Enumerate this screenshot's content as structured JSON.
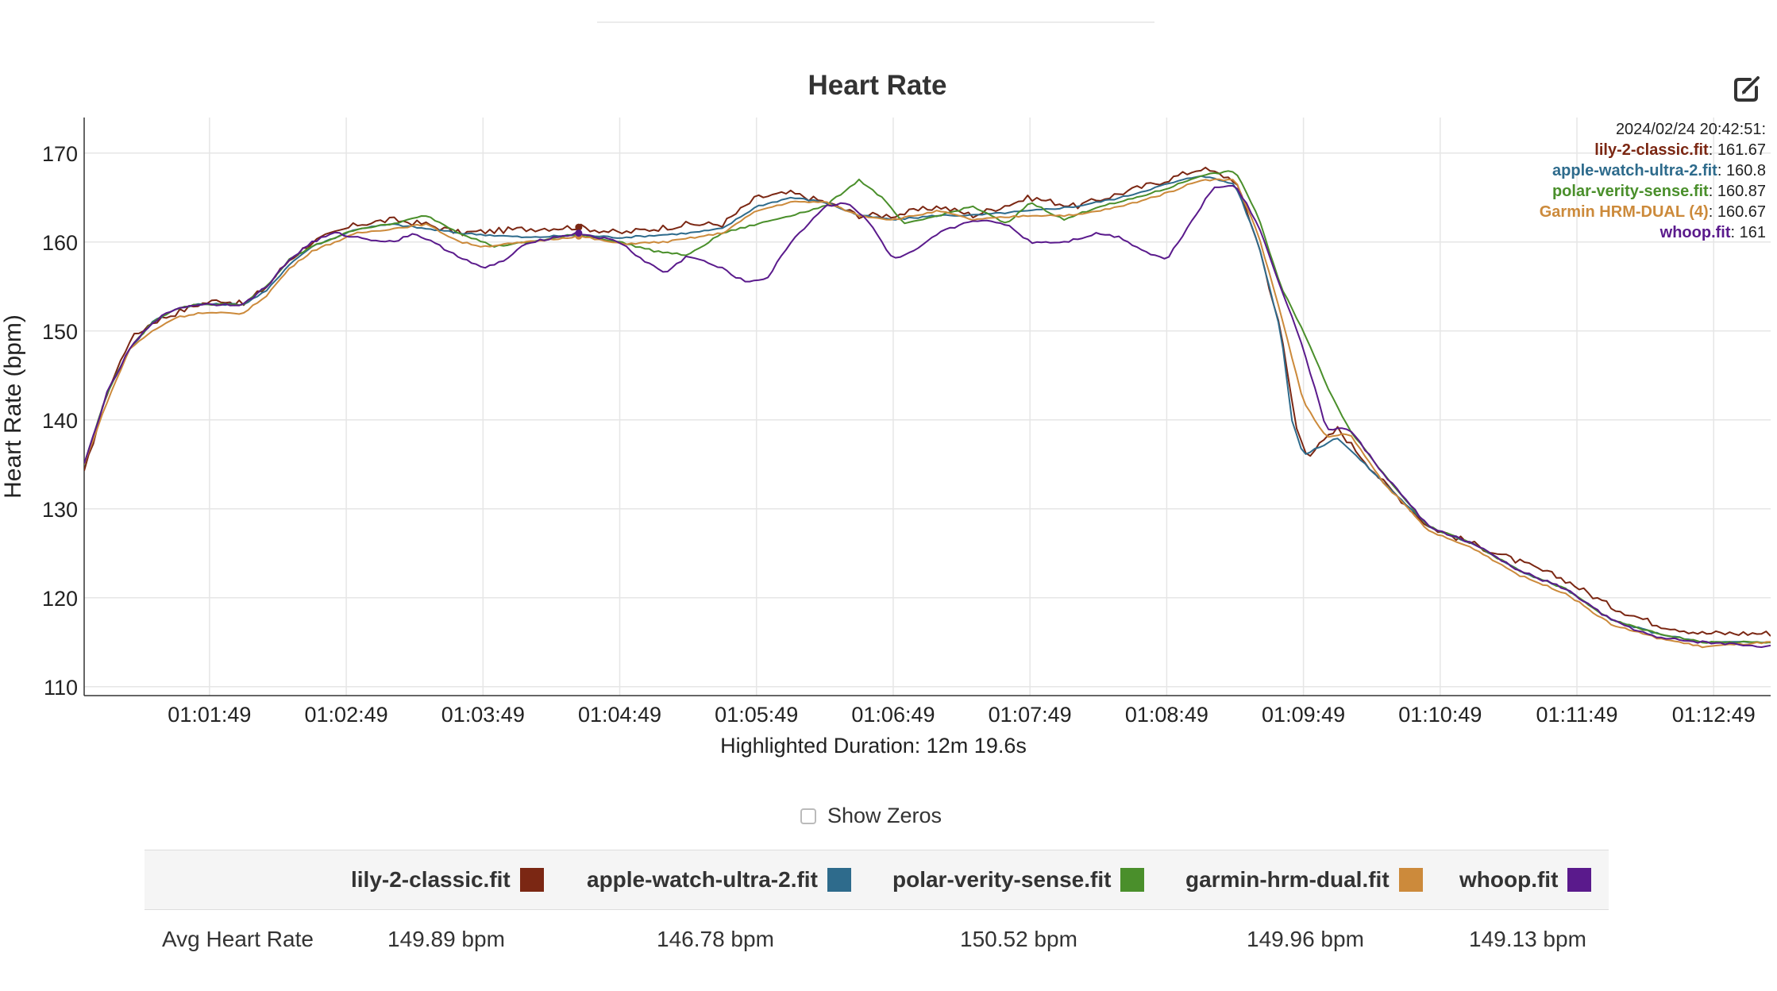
{
  "chart_title": "Heart Rate",
  "export_icon": "edit-export-icon",
  "chart_data": {
    "type": "line",
    "title": "Heart Rate",
    "ylabel": "Heart Rate (bpm)",
    "xlabel": "Highlighted Duration: 12m 19.6s",
    "x_unit": "elapsed time (h:mm:ss)",
    "xlim": [
      "01:00:54",
      "01:13:14"
    ],
    "ylim": [
      109,
      174
    ],
    "y_ticks": [
      110,
      120,
      130,
      140,
      150,
      160,
      170
    ],
    "x_ticks": [
      "01:01:49",
      "01:02:49",
      "01:03:49",
      "01:04:49",
      "01:05:49",
      "01:06:49",
      "01:07:49",
      "01:08:49",
      "01:09:49",
      "01:10:49",
      "01:11:49",
      "01:12:49"
    ],
    "grid": true,
    "legend_position": "below chart (table)",
    "tooltip": {
      "header": "2024/02/24 20:42:51:",
      "time": "01:04:31",
      "entries": [
        {
          "name": "lily-2-classic.fit",
          "value": "161.67",
          "color": "#7b2713"
        },
        {
          "name": "apple-watch-ultra-2.fit",
          "value": "160.8",
          "color": "#2e6b8c"
        },
        {
          "name": "polar-verity-sense.fit",
          "value": "160.87",
          "color": "#4a8f2b"
        },
        {
          "name": "Garmin HRM-DUAL (4)",
          "value": "160.67",
          "color": "#cc8a3b"
        },
        {
          "name": "whoop.fit",
          "value": "161",
          "color": "#5a1a8c"
        }
      ]
    },
    "series": [
      {
        "name": "lily-2-classic.fit",
        "color": "#7b2713",
        "wiggle": 0.7,
        "points": [
          [
            "01:00:54",
            134
          ],
          [
            "01:01:04",
            143
          ],
          [
            "01:01:14",
            149
          ],
          [
            "01:01:24",
            151
          ],
          [
            "01:01:34",
            152
          ],
          [
            "01:01:44",
            153
          ],
          [
            "01:01:54",
            153.5
          ],
          [
            "01:02:04",
            153
          ],
          [
            "01:02:14",
            155
          ],
          [
            "01:02:24",
            158
          ],
          [
            "01:02:34",
            160
          ],
          [
            "01:02:44",
            161
          ],
          [
            "01:02:54",
            162
          ],
          [
            "01:03:09",
            162.5
          ],
          [
            "01:03:24",
            162
          ],
          [
            "01:03:39",
            161
          ],
          [
            "01:04:09",
            161.5
          ],
          [
            "01:04:31",
            161.7
          ],
          [
            "01:04:49",
            161
          ],
          [
            "01:05:19",
            162
          ],
          [
            "01:05:34",
            162
          ],
          [
            "01:05:49",
            165
          ],
          [
            "01:06:04",
            165.5
          ],
          [
            "01:06:19",
            164.5
          ],
          [
            "01:06:34",
            163
          ],
          [
            "01:06:49",
            163
          ],
          [
            "01:07:09",
            164
          ],
          [
            "01:07:24",
            163
          ],
          [
            "01:07:49",
            165
          ],
          [
            "01:08:09",
            164
          ],
          [
            "01:08:29",
            165.5
          ],
          [
            "01:08:49",
            167
          ],
          [
            "01:09:04",
            168.3
          ],
          [
            "01:09:19",
            167
          ],
          [
            "01:09:29",
            160
          ],
          [
            "01:09:39",
            150
          ],
          [
            "01:09:46",
            139
          ],
          [
            "01:09:51",
            136
          ],
          [
            "01:10:04",
            139
          ],
          [
            "01:10:24",
            133
          ],
          [
            "01:10:44",
            128
          ],
          [
            "01:11:04",
            126
          ],
          [
            "01:11:24",
            124
          ],
          [
            "01:11:44",
            122
          ],
          [
            "01:12:04",
            119
          ],
          [
            "01:12:24",
            117
          ],
          [
            "01:12:44",
            116
          ],
          [
            "01:13:14",
            116
          ]
        ]
      },
      {
        "name": "apple-watch-ultra-2.fit",
        "color": "#2e6b8c",
        "wiggle": 0.2,
        "points": [
          [
            "01:00:54",
            135
          ],
          [
            "01:01:04",
            143
          ],
          [
            "01:01:14",
            148
          ],
          [
            "01:01:24",
            151
          ],
          [
            "01:01:34",
            152.5
          ],
          [
            "01:01:44",
            153
          ],
          [
            "01:01:54",
            153
          ],
          [
            "01:02:04",
            153
          ],
          [
            "01:02:14",
            154.5
          ],
          [
            "01:02:24",
            157.5
          ],
          [
            "01:02:34",
            159.5
          ],
          [
            "01:02:44",
            160.5
          ],
          [
            "01:02:54",
            161.5
          ],
          [
            "01:03:09",
            162
          ],
          [
            "01:03:24",
            161.5
          ],
          [
            "01:03:39",
            161
          ],
          [
            "01:04:09",
            160.5
          ],
          [
            "01:04:31",
            160.8
          ],
          [
            "01:04:49",
            160.5
          ],
          [
            "01:05:19",
            161
          ],
          [
            "01:05:34",
            161.5
          ],
          [
            "01:05:49",
            164
          ],
          [
            "01:06:04",
            165
          ],
          [
            "01:06:19",
            164.5
          ],
          [
            "01:06:34",
            163
          ],
          [
            "01:06:49",
            162.5
          ],
          [
            "01:07:09",
            163
          ],
          [
            "01:07:24",
            163
          ],
          [
            "01:07:49",
            163.5
          ],
          [
            "01:08:09",
            164
          ],
          [
            "01:08:29",
            165
          ],
          [
            "01:08:49",
            166.5
          ],
          [
            "01:09:04",
            167.5
          ],
          [
            "01:09:19",
            166.5
          ],
          [
            "01:09:29",
            160
          ],
          [
            "01:09:39",
            150
          ],
          [
            "01:09:44",
            140
          ],
          [
            "01:09:49",
            136
          ],
          [
            "01:10:04",
            138
          ],
          [
            "01:10:24",
            133
          ],
          [
            "01:10:44",
            128
          ],
          [
            "01:11:04",
            126
          ],
          [
            "01:11:24",
            123
          ],
          [
            "01:11:44",
            121
          ],
          [
            "01:12:04",
            117.5
          ],
          [
            "01:12:24",
            116
          ],
          [
            "01:12:44",
            115
          ],
          [
            "01:13:14",
            115
          ]
        ]
      },
      {
        "name": "polar-verity-sense.fit",
        "color": "#4a8f2b",
        "wiggle": 0.2,
        "points": [
          [
            "01:00:54",
            135
          ],
          [
            "01:01:04",
            143
          ],
          [
            "01:01:14",
            148
          ],
          [
            "01:01:24",
            151
          ],
          [
            "01:01:34",
            152.5
          ],
          [
            "01:01:44",
            153
          ],
          [
            "01:01:54",
            153
          ],
          [
            "01:02:04",
            153
          ],
          [
            "01:02:14",
            155
          ],
          [
            "01:02:24",
            158
          ],
          [
            "01:02:34",
            159.5
          ],
          [
            "01:02:44",
            160.5
          ],
          [
            "01:02:54",
            161.5
          ],
          [
            "01:03:09",
            162
          ],
          [
            "01:03:24",
            163
          ],
          [
            "01:03:39",
            161
          ],
          [
            "01:03:54",
            159.5
          ],
          [
            "01:04:09",
            160
          ],
          [
            "01:04:31",
            160.87
          ],
          [
            "01:04:49",
            160
          ],
          [
            "01:05:04",
            159
          ],
          [
            "01:05:19",
            158.5
          ],
          [
            "01:05:34",
            161
          ],
          [
            "01:05:49",
            162
          ],
          [
            "01:06:04",
            163
          ],
          [
            "01:06:19",
            164
          ],
          [
            "01:06:34",
            167
          ],
          [
            "01:06:44",
            165
          ],
          [
            "01:06:54",
            162
          ],
          [
            "01:07:09",
            163
          ],
          [
            "01:07:24",
            164
          ],
          [
            "01:07:39",
            162
          ],
          [
            "01:07:49",
            164.5
          ],
          [
            "01:08:04",
            162.5
          ],
          [
            "01:08:19",
            164
          ],
          [
            "01:08:29",
            164.5
          ],
          [
            "01:08:49",
            166
          ],
          [
            "01:09:04",
            167.5
          ],
          [
            "01:09:19",
            168
          ],
          [
            "01:09:29",
            163
          ],
          [
            "01:09:39",
            155
          ],
          [
            "01:09:49",
            150
          ],
          [
            "01:09:59",
            144
          ],
          [
            "01:10:09",
            139
          ],
          [
            "01:10:24",
            134
          ],
          [
            "01:10:44",
            128
          ],
          [
            "01:11:04",
            126
          ],
          [
            "01:11:24",
            123
          ],
          [
            "01:11:44",
            121
          ],
          [
            "01:12:04",
            117.5
          ],
          [
            "01:12:24",
            116
          ],
          [
            "01:12:44",
            115
          ],
          [
            "01:13:14",
            115
          ]
        ]
      },
      {
        "name": "Garmin HRM-DUAL (4)",
        "color": "#cc8a3b",
        "wiggle": 0.2,
        "points": [
          [
            "01:00:54",
            135
          ],
          [
            "01:01:04",
            142
          ],
          [
            "01:01:14",
            148
          ],
          [
            "01:01:24",
            150
          ],
          [
            "01:01:34",
            151.5
          ],
          [
            "01:01:44",
            152
          ],
          [
            "01:01:54",
            152
          ],
          [
            "01:02:04",
            152
          ],
          [
            "01:02:14",
            154
          ],
          [
            "01:02:24",
            157
          ],
          [
            "01:02:34",
            159
          ],
          [
            "01:02:44",
            160
          ],
          [
            "01:02:54",
            161
          ],
          [
            "01:03:09",
            161.5
          ],
          [
            "01:03:24",
            162
          ],
          [
            "01:03:39",
            160
          ],
          [
            "01:03:49",
            159.5
          ],
          [
            "01:04:09",
            160
          ],
          [
            "01:04:31",
            160.67
          ],
          [
            "01:04:49",
            159.8
          ],
          [
            "01:05:09",
            160
          ],
          [
            "01:05:34",
            161
          ],
          [
            "01:05:49",
            163.5
          ],
          [
            "01:06:04",
            164.5
          ],
          [
            "01:06:19",
            164.5
          ],
          [
            "01:06:34",
            163
          ],
          [
            "01:06:49",
            162.5
          ],
          [
            "01:07:09",
            163.5
          ],
          [
            "01:07:24",
            162.5
          ],
          [
            "01:07:49",
            163
          ],
          [
            "01:08:09",
            163
          ],
          [
            "01:08:29",
            164
          ],
          [
            "01:08:49",
            165.5
          ],
          [
            "01:09:04",
            167
          ],
          [
            "01:09:19",
            167
          ],
          [
            "01:09:29",
            161
          ],
          [
            "01:09:39",
            152
          ],
          [
            "01:09:49",
            142
          ],
          [
            "01:09:59",
            138
          ],
          [
            "01:10:09",
            138.5
          ],
          [
            "01:10:24",
            133
          ],
          [
            "01:10:44",
            127.5
          ],
          [
            "01:11:04",
            125.5
          ],
          [
            "01:11:24",
            122.5
          ],
          [
            "01:11:44",
            120.5
          ],
          [
            "01:12:04",
            117
          ],
          [
            "01:12:24",
            115.5
          ],
          [
            "01:12:44",
            114.5
          ],
          [
            "01:13:14",
            115
          ]
        ]
      },
      {
        "name": "whoop.fit",
        "color": "#5a1a8c",
        "wiggle": 0.3,
        "points": [
          [
            "01:00:54",
            135
          ],
          [
            "01:01:04",
            143
          ],
          [
            "01:01:14",
            148
          ],
          [
            "01:01:24",
            151
          ],
          [
            "01:01:34",
            152.5
          ],
          [
            "01:01:44",
            153
          ],
          [
            "01:01:54",
            153
          ],
          [
            "01:02:04",
            153
          ],
          [
            "01:02:14",
            155
          ],
          [
            "01:02:24",
            158
          ],
          [
            "01:02:34",
            160
          ],
          [
            "01:02:44",
            161
          ],
          [
            "01:02:54",
            160.5
          ],
          [
            "01:03:09",
            160
          ],
          [
            "01:03:19",
            161
          ],
          [
            "01:03:34",
            159
          ],
          [
            "01:03:49",
            157
          ],
          [
            "01:03:59",
            158
          ],
          [
            "01:04:09",
            160
          ],
          [
            "01:04:31",
            161
          ],
          [
            "01:04:49",
            160
          ],
          [
            "01:04:59",
            158
          ],
          [
            "01:05:09",
            156.5
          ],
          [
            "01:05:19",
            158.5
          ],
          [
            "01:05:34",
            157
          ],
          [
            "01:05:44",
            155.5
          ],
          [
            "01:05:54",
            156
          ],
          [
            "01:06:04",
            160
          ],
          [
            "01:06:19",
            164
          ],
          [
            "01:06:29",
            164.5
          ],
          [
            "01:06:39",
            162
          ],
          [
            "01:06:49",
            158
          ],
          [
            "01:06:59",
            159
          ],
          [
            "01:07:09",
            161
          ],
          [
            "01:07:24",
            162.5
          ],
          [
            "01:07:39",
            162
          ],
          [
            "01:07:49",
            160
          ],
          [
            "01:08:04",
            160
          ],
          [
            "01:08:19",
            161
          ],
          [
            "01:08:29",
            160.5
          ],
          [
            "01:08:39",
            159
          ],
          [
            "01:08:49",
            158
          ],
          [
            "01:08:59",
            162
          ],
          [
            "01:09:09",
            166
          ],
          [
            "01:09:19",
            166.5
          ],
          [
            "01:09:29",
            162
          ],
          [
            "01:09:39",
            155
          ],
          [
            "01:09:49",
            148
          ],
          [
            "01:09:59",
            139
          ],
          [
            "01:10:09",
            139
          ],
          [
            "01:10:24",
            134
          ],
          [
            "01:10:44",
            128
          ],
          [
            "01:11:04",
            126
          ],
          [
            "01:11:24",
            123
          ],
          [
            "01:11:44",
            121
          ],
          [
            "01:12:04",
            117.5
          ],
          [
            "01:12:24",
            115.5
          ],
          [
            "01:12:44",
            115
          ],
          [
            "01:13:14",
            114.5
          ]
        ]
      }
    ]
  },
  "show_zeros": {
    "label": "Show Zeros",
    "checked": false
  },
  "stats_table": {
    "columns": [
      {
        "name": "lily-2-classic.fit",
        "color": "#7b2713"
      },
      {
        "name": "apple-watch-ultra-2.fit",
        "color": "#2e6b8c"
      },
      {
        "name": "polar-verity-sense.fit",
        "color": "#4a8f2b"
      },
      {
        "name": "garmin-hrm-dual.fit",
        "color": "#cc8a3b"
      },
      {
        "name": "whoop.fit",
        "color": "#5a1a8c"
      }
    ],
    "rows": [
      {
        "label": "Avg Heart Rate",
        "values": [
          "149.89 bpm",
          "146.78 bpm",
          "150.52 bpm",
          "149.96 bpm",
          "149.13 bpm"
        ]
      }
    ]
  }
}
